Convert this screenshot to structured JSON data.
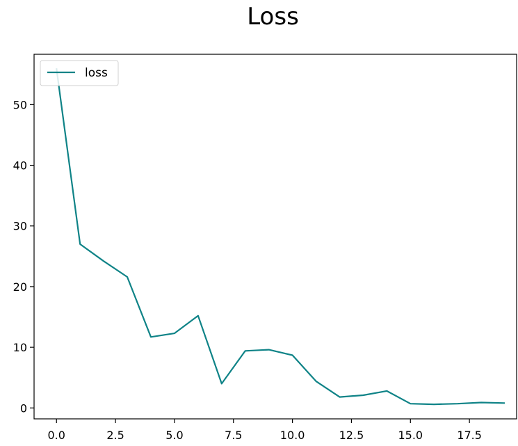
{
  "chart_data": {
    "type": "line",
    "title": "Loss",
    "xlabel": "",
    "ylabel": "",
    "xlim": [
      -0.95,
      19.5
    ],
    "ylim": [
      -1.8,
      58.3
    ],
    "x_ticks": [
      0.0,
      2.5,
      5.0,
      7.5,
      10.0,
      12.5,
      15.0,
      17.5
    ],
    "x_tick_labels": [
      "0.0",
      "2.5",
      "5.0",
      "7.5",
      "10.0",
      "12.5",
      "15.0",
      "17.5"
    ],
    "y_ticks": [
      0,
      10,
      20,
      30,
      40,
      50
    ],
    "y_tick_labels": [
      "0",
      "10",
      "20",
      "30",
      "40",
      "50"
    ],
    "grid": false,
    "legend_position": "top-left",
    "series": [
      {
        "name": "loss",
        "color": "#0f8387",
        "x": [
          0,
          1,
          2,
          3,
          4,
          5,
          6,
          7,
          8,
          9,
          10,
          11,
          12,
          13,
          14,
          15,
          16,
          17,
          18,
          19
        ],
        "y": [
          56.0,
          27.0,
          24.2,
          21.6,
          11.7,
          12.3,
          15.2,
          4.0,
          9.4,
          9.6,
          8.7,
          4.4,
          1.8,
          2.1,
          2.8,
          0.7,
          0.6,
          0.7,
          0.9,
          0.8
        ]
      }
    ]
  }
}
